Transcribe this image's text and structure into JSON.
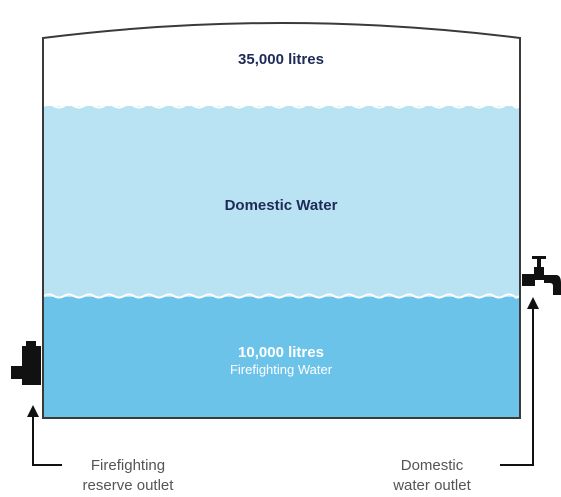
{
  "diagram": {
    "total_capacity_label": "35,000 litres",
    "domestic_label": "Domestic Water",
    "reserve_amount_label": "10,000 litres",
    "reserve_label": "Firefighting Water",
    "firefighting_outlet": {
      "line1": "Firefighting",
      "line2": "reserve outlet"
    },
    "domestic_outlet": {
      "line1": "Domestic",
      "line2": "water outlet"
    }
  },
  "colors": {
    "outline": "#3a3a3a",
    "domestic_water": "#b9e2f3",
    "firefighting_water": "#6cc3ea",
    "label_dark": "#1f2a57",
    "label_light": "#ffffff",
    "callout_text": "#555555",
    "fixture": "#111111"
  }
}
